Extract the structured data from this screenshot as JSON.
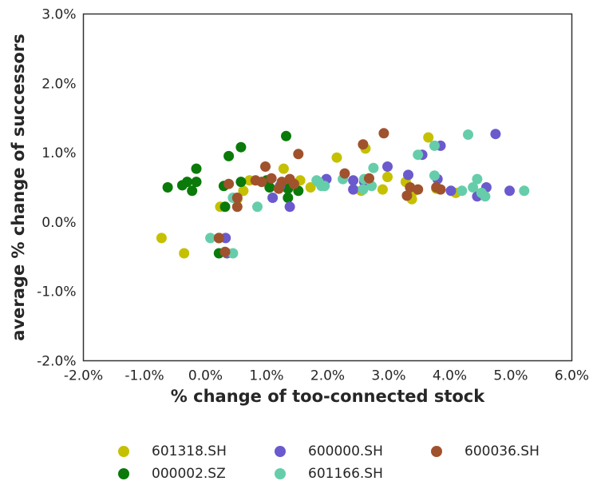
{
  "chart_data": {
    "type": "scatter",
    "xlabel": "% change of too-connected stock",
    "ylabel": "average % change of successors",
    "xlim": [
      -2.0,
      6.0
    ],
    "ylim": [
      -2.0,
      3.0
    ],
    "x_ticks": [
      "-2.0%",
      "-1.0%",
      "0.0%",
      "1.0%",
      "2.0%",
      "3.0%",
      "4.0%",
      "5.0%",
      "6.0%"
    ],
    "y_ticks": [
      "3.0%",
      "2.0%",
      "1.0%",
      "0.0%",
      "-1.0%",
      "-2.0%"
    ],
    "grid": false,
    "legend_placement": "bottom",
    "series": [
      {
        "name": "601318.SH",
        "color": "#c5c000",
        "points": [
          [
            -0.72,
            -0.23
          ],
          [
            -0.35,
            -0.45
          ],
          [
            0.24,
            0.22
          ],
          [
            0.52,
            0.33
          ],
          [
            0.62,
            0.45
          ],
          [
            0.72,
            0.6
          ],
          [
            1.28,
            0.77
          ],
          [
            1.32,
            0.55
          ],
          [
            1.55,
            0.6
          ],
          [
            1.72,
            0.5
          ],
          [
            2.15,
            0.93
          ],
          [
            2.55,
            0.45
          ],
          [
            2.62,
            1.06
          ],
          [
            2.9,
            0.47
          ],
          [
            2.98,
            0.65
          ],
          [
            3.28,
            0.58
          ],
          [
            3.38,
            0.33
          ],
          [
            3.42,
            0.45
          ],
          [
            3.65,
            1.22
          ],
          [
            3.78,
            0.48
          ],
          [
            4.1,
            0.42
          ]
        ]
      },
      {
        "name": "000002.SZ",
        "color": "#0a7a0a",
        "points": [
          [
            -0.62,
            0.5
          ],
          [
            -0.38,
            0.53
          ],
          [
            -0.3,
            0.58
          ],
          [
            -0.22,
            0.45
          ],
          [
            -0.15,
            0.58
          ],
          [
            -0.15,
            0.77
          ],
          [
            0.22,
            -0.45
          ],
          [
            0.3,
            0.52
          ],
          [
            0.32,
            0.22
          ],
          [
            0.38,
            0.95
          ],
          [
            0.58,
            0.58
          ],
          [
            0.58,
            1.08
          ],
          [
            1.0,
            0.6
          ],
          [
            1.05,
            0.5
          ],
          [
            1.32,
            1.24
          ],
          [
            1.35,
            0.48
          ],
          [
            1.35,
            0.35
          ],
          [
            1.52,
            0.45
          ],
          [
            0.22,
            -0.23
          ]
        ]
      },
      {
        "name": "600000.SH",
        "color": "#6a5acd",
        "points": [
          [
            0.33,
            -0.23
          ],
          [
            0.35,
            -0.45
          ],
          [
            1.1,
            0.35
          ],
          [
            1.22,
            0.52
          ],
          [
            1.38,
            0.22
          ],
          [
            1.98,
            0.62
          ],
          [
            2.42,
            0.6
          ],
          [
            2.42,
            0.47
          ],
          [
            2.6,
            0.58
          ],
          [
            2.98,
            0.8
          ],
          [
            3.32,
            0.68
          ],
          [
            3.55,
            0.97
          ],
          [
            3.8,
            0.62
          ],
          [
            3.85,
            1.1
          ],
          [
            4.02,
            0.45
          ],
          [
            4.45,
            0.37
          ],
          [
            4.6,
            0.5
          ],
          [
            4.75,
            1.27
          ],
          [
            4.98,
            0.45
          ]
        ]
      },
      {
        "name": "601166.SH",
        "color": "#66cdaa",
        "points": [
          [
            0.08,
            -0.23
          ],
          [
            0.45,
            -0.45
          ],
          [
            0.45,
            0.35
          ],
          [
            0.85,
            0.22
          ],
          [
            1.82,
            0.6
          ],
          [
            1.85,
            0.58
          ],
          [
            1.9,
            0.52
          ],
          [
            1.95,
            0.52
          ],
          [
            2.25,
            0.62
          ],
          [
            2.6,
            0.62
          ],
          [
            2.72,
            0.52
          ],
          [
            2.75,
            0.78
          ],
          [
            3.48,
            0.97
          ],
          [
            3.75,
            1.1
          ],
          [
            3.75,
            0.67
          ],
          [
            4.2,
            0.45
          ],
          [
            4.3,
            1.26
          ],
          [
            4.38,
            0.5
          ],
          [
            4.45,
            0.62
          ],
          [
            4.52,
            0.42
          ],
          [
            4.58,
            0.37
          ],
          [
            5.22,
            0.45
          ],
          [
            2.58,
            0.47
          ]
        ]
      },
      {
        "name": "600036.SH",
        "color": "#a0522d",
        "points": [
          [
            0.22,
            -0.23
          ],
          [
            0.32,
            -0.43
          ],
          [
            0.38,
            0.55
          ],
          [
            0.52,
            0.35
          ],
          [
            0.52,
            0.22
          ],
          [
            0.82,
            0.6
          ],
          [
            0.92,
            0.58
          ],
          [
            0.98,
            0.8
          ],
          [
            1.08,
            0.63
          ],
          [
            1.2,
            0.48
          ],
          [
            1.25,
            0.58
          ],
          [
            1.38,
            0.62
          ],
          [
            1.45,
            0.55
          ],
          [
            1.52,
            0.98
          ],
          [
            2.28,
            0.7
          ],
          [
            2.58,
            1.12
          ],
          [
            2.68,
            0.63
          ],
          [
            2.92,
            1.28
          ],
          [
            3.3,
            0.38
          ],
          [
            3.35,
            0.5
          ],
          [
            3.48,
            0.47
          ],
          [
            3.78,
            0.5
          ],
          [
            3.85,
            0.47
          ]
        ]
      }
    ]
  }
}
